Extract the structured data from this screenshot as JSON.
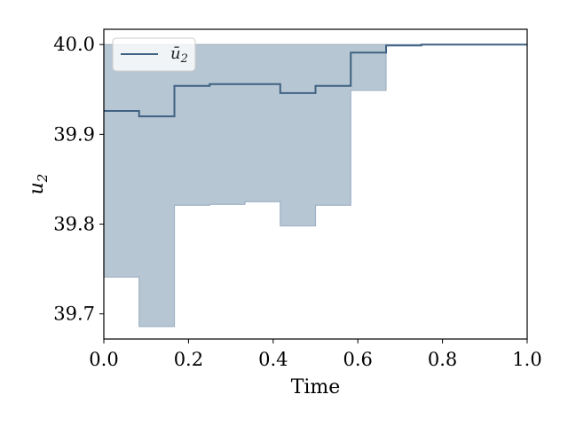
{
  "chart_data": {
    "type": "line",
    "xlabel": "Time",
    "ylabel": "u",
    "ylabel_sub": "2",
    "xlim": [
      0.0,
      1.0
    ],
    "ylim": [
      39.672,
      40.017
    ],
    "x_ticks": [
      0.0,
      0.2,
      0.4,
      0.6,
      0.8,
      1.0
    ],
    "x_tick_labels": [
      "0.0",
      "0.2",
      "0.4",
      "0.6",
      "0.8",
      "1.0"
    ],
    "y_ticks": [
      39.7,
      39.8,
      39.9,
      40.0
    ],
    "y_tick_labels": [
      "39.7",
      "39.8",
      "39.9",
      "40.0"
    ],
    "grid": false,
    "legend_position": "top-left",
    "colors": {
      "line": "#3f6182",
      "band": "#b7c6d3",
      "band_edge": "#9fb2c4"
    },
    "series": [
      {
        "name": "ū",
        "name_sub": "2",
        "style": "step-post",
        "x": [
          0.0,
          0.0833,
          0.1667,
          0.25,
          0.3333,
          0.4167,
          0.5,
          0.5833,
          0.6667,
          0.75,
          0.8333,
          0.9167
        ],
        "values": [
          39.926,
          39.92,
          39.954,
          39.956,
          39.956,
          39.946,
          39.954,
          39.991,
          39.999,
          40.0,
          40.0,
          40.0
        ]
      }
    ],
    "band": {
      "style": "step-post",
      "x": [
        0.0,
        0.0833,
        0.1667,
        0.25,
        0.3333,
        0.4167,
        0.5,
        0.5833,
        0.6667,
        0.75,
        0.8333,
        0.9167
      ],
      "upper": [
        40.0,
        40.0,
        40.0,
        40.0,
        40.0,
        40.0,
        40.0,
        40.0,
        40.0,
        40.0,
        40.0,
        40.0
      ],
      "lower": [
        39.741,
        39.686,
        39.821,
        39.822,
        39.825,
        39.798,
        39.821,
        39.949,
        40.0,
        40.0,
        40.0,
        40.0
      ]
    }
  }
}
